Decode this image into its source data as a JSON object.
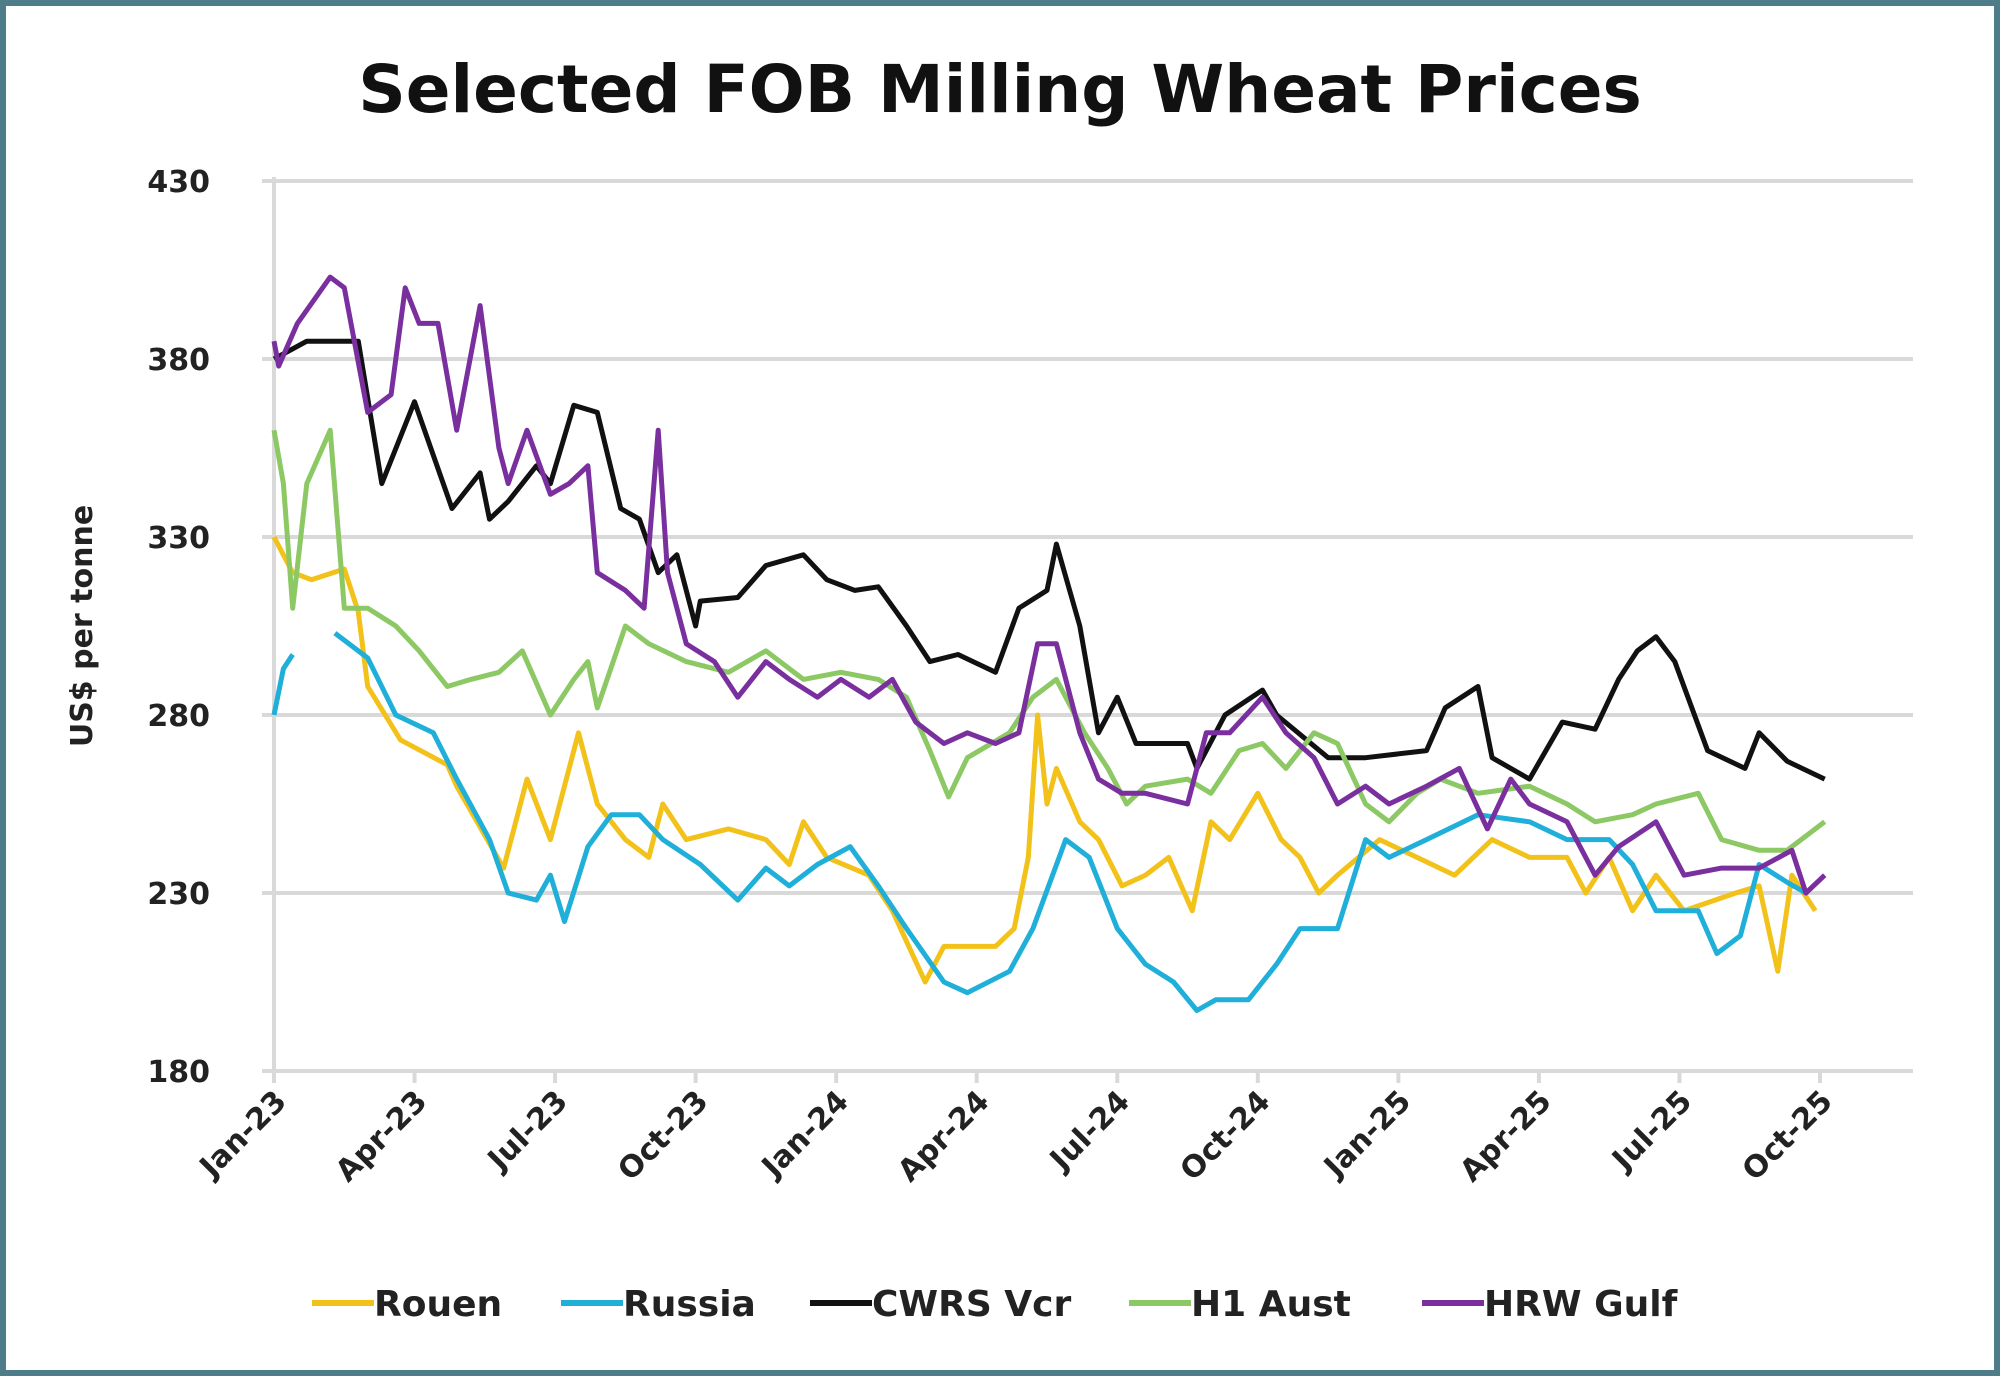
{
  "chart_data": {
    "type": "line",
    "title": "Selected FOB Milling Wheat Prices",
    "xlabel": "",
    "ylabel": "US$ per tonne",
    "ylim": [
      180,
      430
    ],
    "yticks": [
      "180",
      "230",
      "280",
      "330",
      "380",
      "430"
    ],
    "ytick_values": [
      180,
      230,
      280,
      330,
      380,
      430
    ],
    "x_unit": "months since Jan-23",
    "xlim": [
      0,
      33
    ],
    "xticks": [
      "Jan-23",
      "Apr-23",
      "Jul-23",
      "Oct-23",
      "Jan-24",
      "Apr-24",
      "Jul-24",
      "Oct-24",
      "Jan-25",
      "Apr-25",
      "Jul-25",
      "Oct-25"
    ],
    "grid": "horizontal",
    "legend_position": "bottom",
    "series": [
      {
        "name": "Rouen",
        "color": "#f2c21a",
        "points": [
          [
            0,
            330
          ],
          [
            0.4,
            320
          ],
          [
            0.8,
            318
          ],
          [
            1.5,
            321
          ],
          [
            1.8,
            309
          ],
          [
            2.0,
            288
          ],
          [
            2.7,
            273
          ],
          [
            3.7,
            266
          ],
          [
            3.9,
            260
          ],
          [
            4.9,
            237
          ],
          [
            5.4,
            262
          ],
          [
            5.9,
            245
          ],
          [
            6.5,
            275
          ],
          [
            6.9,
            255
          ],
          [
            7.5,
            245
          ],
          [
            8.0,
            240
          ],
          [
            8.3,
            255
          ],
          [
            8.8,
            245
          ],
          [
            9.7,
            248
          ],
          [
            10.5,
            245
          ],
          [
            11.0,
            238
          ],
          [
            11.3,
            250
          ],
          [
            11.8,
            240
          ],
          [
            12.7,
            235
          ],
          [
            13.2,
            225
          ],
          [
            13.9,
            205
          ],
          [
            14.3,
            215
          ],
          [
            15.4,
            215
          ],
          [
            15.8,
            220
          ],
          [
            16.1,
            240
          ],
          [
            16.3,
            280
          ],
          [
            16.5,
            255
          ],
          [
            16.7,
            265
          ],
          [
            17.2,
            250
          ],
          [
            17.6,
            245
          ],
          [
            18.1,
            232
          ],
          [
            18.6,
            235
          ],
          [
            19.1,
            240
          ],
          [
            19.6,
            225
          ],
          [
            20.0,
            250
          ],
          [
            20.4,
            245
          ],
          [
            21.0,
            258
          ],
          [
            21.5,
            245
          ],
          [
            21.9,
            240
          ],
          [
            22.3,
            230
          ],
          [
            22.7,
            235
          ],
          [
            23.6,
            245
          ],
          [
            24.4,
            240
          ],
          [
            25.2,
            235
          ],
          [
            26.0,
            245
          ],
          [
            26.8,
            240
          ],
          [
            27.6,
            240
          ],
          [
            28.0,
            230
          ],
          [
            28.5,
            240
          ],
          [
            29.0,
            225
          ],
          [
            29.5,
            235
          ],
          [
            30.1,
            225
          ],
          [
            31.2,
            230
          ],
          [
            31.7,
            232
          ],
          [
            32.1,
            208
          ],
          [
            32.4,
            235
          ],
          [
            32.9,
            225
          ]
        ]
      },
      {
        "name": "Russia",
        "color": "#1fafd9",
        "segments": [
          [
            [
              0,
              280
            ],
            [
              0.2,
              293
            ],
            [
              0.4,
              297
            ]
          ],
          [
            [
              1.3,
              303
            ],
            [
              2.0,
              296
            ],
            [
              2.6,
              280
            ],
            [
              3.4,
              275
            ],
            [
              3.9,
              262
            ],
            [
              4.6,
              245
            ],
            [
              5.0,
              230
            ],
            [
              5.6,
              228
            ],
            [
              5.9,
              235
            ],
            [
              6.2,
              222
            ],
            [
              6.7,
              243
            ],
            [
              7.2,
              252
            ],
            [
              7.8,
              252
            ],
            [
              8.3,
              245
            ],
            [
              9.1,
              238
            ],
            [
              9.9,
              228
            ],
            [
              10.5,
              237
            ],
            [
              11.0,
              232
            ],
            [
              11.6,
              238
            ],
            [
              12.3,
              243
            ],
            [
              12.9,
              232
            ],
            [
              13.5,
              220
            ],
            [
              14.3,
              205
            ],
            [
              14.8,
              202
            ],
            [
              15.7,
              208
            ],
            [
              16.2,
              220
            ],
            [
              16.9,
              245
            ],
            [
              17.4,
              240
            ],
            [
              18.0,
              220
            ],
            [
              18.6,
              210
            ],
            [
              19.2,
              205
            ],
            [
              19.7,
              197
            ],
            [
              20.1,
              200
            ],
            [
              20.8,
              200
            ],
            [
              21.4,
              210
            ],
            [
              21.9,
              220
            ],
            [
              22.7,
              220
            ],
            [
              23.3,
              245
            ],
            [
              23.8,
              240
            ],
            [
              24.6,
              245
            ],
            [
              25.7,
              252
            ],
            [
              26.8,
              250
            ],
            [
              27.6,
              245
            ],
            [
              28.5,
              245
            ],
            [
              29.0,
              238
            ],
            [
              29.5,
              225
            ],
            [
              30.4,
              225
            ],
            [
              30.8,
              213
            ],
            [
              31.3,
              218
            ],
            [
              31.7,
              238
            ],
            [
              32.3,
              233
            ],
            [
              32.7,
              230
            ]
          ]
        ]
      },
      {
        "name": "CWRS Vcr",
        "color": "#111111",
        "points": [
          [
            0,
            380
          ],
          [
            0.7,
            385
          ],
          [
            1.8,
            385
          ],
          [
            2.3,
            345
          ],
          [
            3.0,
            368
          ],
          [
            3.8,
            338
          ],
          [
            4.4,
            348
          ],
          [
            4.6,
            335
          ],
          [
            5.0,
            340
          ],
          [
            5.6,
            350
          ],
          [
            5.9,
            345
          ],
          [
            6.4,
            367
          ],
          [
            6.9,
            365
          ],
          [
            7.4,
            338
          ],
          [
            7.8,
            335
          ],
          [
            8.2,
            320
          ],
          [
            8.6,
            325
          ],
          [
            9.0,
            305
          ],
          [
            9.1,
            312
          ],
          [
            9.9,
            313
          ],
          [
            10.5,
            322
          ],
          [
            11.3,
            325
          ],
          [
            11.8,
            318
          ],
          [
            12.4,
            315
          ],
          [
            12.9,
            316
          ],
          [
            13.5,
            305
          ],
          [
            14.0,
            295
          ],
          [
            14.6,
            297
          ],
          [
            15.4,
            292
          ],
          [
            15.9,
            310
          ],
          [
            16.5,
            315
          ],
          [
            16.7,
            328
          ],
          [
            17.2,
            305
          ],
          [
            17.6,
            275
          ],
          [
            18.0,
            285
          ],
          [
            18.4,
            272
          ],
          [
            19.5,
            272
          ],
          [
            19.7,
            265
          ],
          [
            20.3,
            280
          ],
          [
            21.1,
            287
          ],
          [
            21.4,
            280
          ],
          [
            22.5,
            268
          ],
          [
            23.3,
            268
          ],
          [
            24.6,
            270
          ],
          [
            25.0,
            282
          ],
          [
            25.7,
            288
          ],
          [
            26.0,
            268
          ],
          [
            26.8,
            262
          ],
          [
            27.5,
            278
          ],
          [
            28.2,
            276
          ],
          [
            28.7,
            290
          ],
          [
            29.1,
            298
          ],
          [
            29.5,
            302
          ],
          [
            29.9,
            295
          ],
          [
            30.6,
            270
          ],
          [
            31.4,
            265
          ],
          [
            31.7,
            275
          ],
          [
            32.3,
            267
          ],
          [
            33.1,
            262
          ]
        ]
      },
      {
        "name": "H1 Aust",
        "color": "#8cc864",
        "points": [
          [
            0,
            360
          ],
          [
            0.2,
            345
          ],
          [
            0.4,
            310
          ],
          [
            0.7,
            345
          ],
          [
            1.2,
            360
          ],
          [
            1.5,
            310
          ],
          [
            2.0,
            310
          ],
          [
            2.6,
            305
          ],
          [
            3.1,
            298
          ],
          [
            3.7,
            288
          ],
          [
            4.2,
            290
          ],
          [
            4.8,
            292
          ],
          [
            5.3,
            298
          ],
          [
            5.9,
            280
          ],
          [
            6.4,
            290
          ],
          [
            6.7,
            295
          ],
          [
            6.9,
            282
          ],
          [
            7.5,
            305
          ],
          [
            8.0,
            300
          ],
          [
            8.8,
            295
          ],
          [
            9.7,
            292
          ],
          [
            10.5,
            298
          ],
          [
            11.3,
            290
          ],
          [
            12.1,
            292
          ],
          [
            12.9,
            290
          ],
          [
            13.5,
            285
          ],
          [
            14.0,
            270
          ],
          [
            14.4,
            257
          ],
          [
            14.8,
            268
          ],
          [
            15.7,
            275
          ],
          [
            16.2,
            285
          ],
          [
            16.7,
            290
          ],
          [
            17.3,
            275
          ],
          [
            17.8,
            265
          ],
          [
            18.2,
            255
          ],
          [
            18.6,
            260
          ],
          [
            19.5,
            262
          ],
          [
            20.0,
            258
          ],
          [
            20.6,
            270
          ],
          [
            21.1,
            272
          ],
          [
            21.6,
            265
          ],
          [
            22.2,
            275
          ],
          [
            22.7,
            272
          ],
          [
            23.3,
            255
          ],
          [
            23.8,
            250
          ],
          [
            24.4,
            258
          ],
          [
            24.9,
            262
          ],
          [
            25.7,
            258
          ],
          [
            26.8,
            260
          ],
          [
            27.6,
            255
          ],
          [
            28.2,
            250
          ],
          [
            29.0,
            252
          ],
          [
            29.5,
            255
          ],
          [
            30.4,
            258
          ],
          [
            30.9,
            245
          ],
          [
            31.7,
            242
          ],
          [
            32.3,
            242
          ],
          [
            33.1,
            250
          ]
        ]
      },
      {
        "name": "HRW Gulf",
        "color": "#7a2f9e",
        "points": [
          [
            0,
            385
          ],
          [
            0.1,
            378
          ],
          [
            0.5,
            390
          ],
          [
            1.2,
            403
          ],
          [
            1.5,
            400
          ],
          [
            2.0,
            365
          ],
          [
            2.5,
            370
          ],
          [
            2.8,
            400
          ],
          [
            3.1,
            390
          ],
          [
            3.5,
            390
          ],
          [
            3.9,
            360
          ],
          [
            4.4,
            395
          ],
          [
            4.8,
            355
          ],
          [
            5.0,
            345
          ],
          [
            5.4,
            360
          ],
          [
            5.9,
            342
          ],
          [
            6.3,
            345
          ],
          [
            6.7,
            350
          ],
          [
            6.9,
            320
          ],
          [
            7.5,
            315
          ],
          [
            7.9,
            310
          ],
          [
            8.2,
            360
          ],
          [
            8.4,
            320
          ],
          [
            8.8,
            300
          ],
          [
            9.4,
            295
          ],
          [
            9.9,
            285
          ],
          [
            10.5,
            295
          ],
          [
            11.0,
            290
          ],
          [
            11.6,
            285
          ],
          [
            12.1,
            290
          ],
          [
            12.7,
            285
          ],
          [
            13.2,
            290
          ],
          [
            13.7,
            278
          ],
          [
            14.3,
            272
          ],
          [
            14.8,
            275
          ],
          [
            15.4,
            272
          ],
          [
            15.9,
            275
          ],
          [
            16.3,
            300
          ],
          [
            16.7,
            300
          ],
          [
            17.2,
            275
          ],
          [
            17.6,
            262
          ],
          [
            18.1,
            258
          ],
          [
            18.6,
            258
          ],
          [
            19.5,
            255
          ],
          [
            19.9,
            275
          ],
          [
            20.4,
            275
          ],
          [
            21.1,
            285
          ],
          [
            21.6,
            275
          ],
          [
            22.2,
            268
          ],
          [
            22.7,
            255
          ],
          [
            23.3,
            260
          ],
          [
            23.8,
            255
          ],
          [
            24.6,
            260
          ],
          [
            25.3,
            265
          ],
          [
            25.9,
            248
          ],
          [
            26.4,
            262
          ],
          [
            26.8,
            255
          ],
          [
            27.6,
            250
          ],
          [
            28.2,
            235
          ],
          [
            28.7,
            243
          ],
          [
            29.5,
            250
          ],
          [
            30.1,
            235
          ],
          [
            30.9,
            237
          ],
          [
            31.7,
            237
          ],
          [
            32.4,
            242
          ],
          [
            32.7,
            230
          ],
          [
            33.1,
            235
          ]
        ]
      }
    ]
  }
}
